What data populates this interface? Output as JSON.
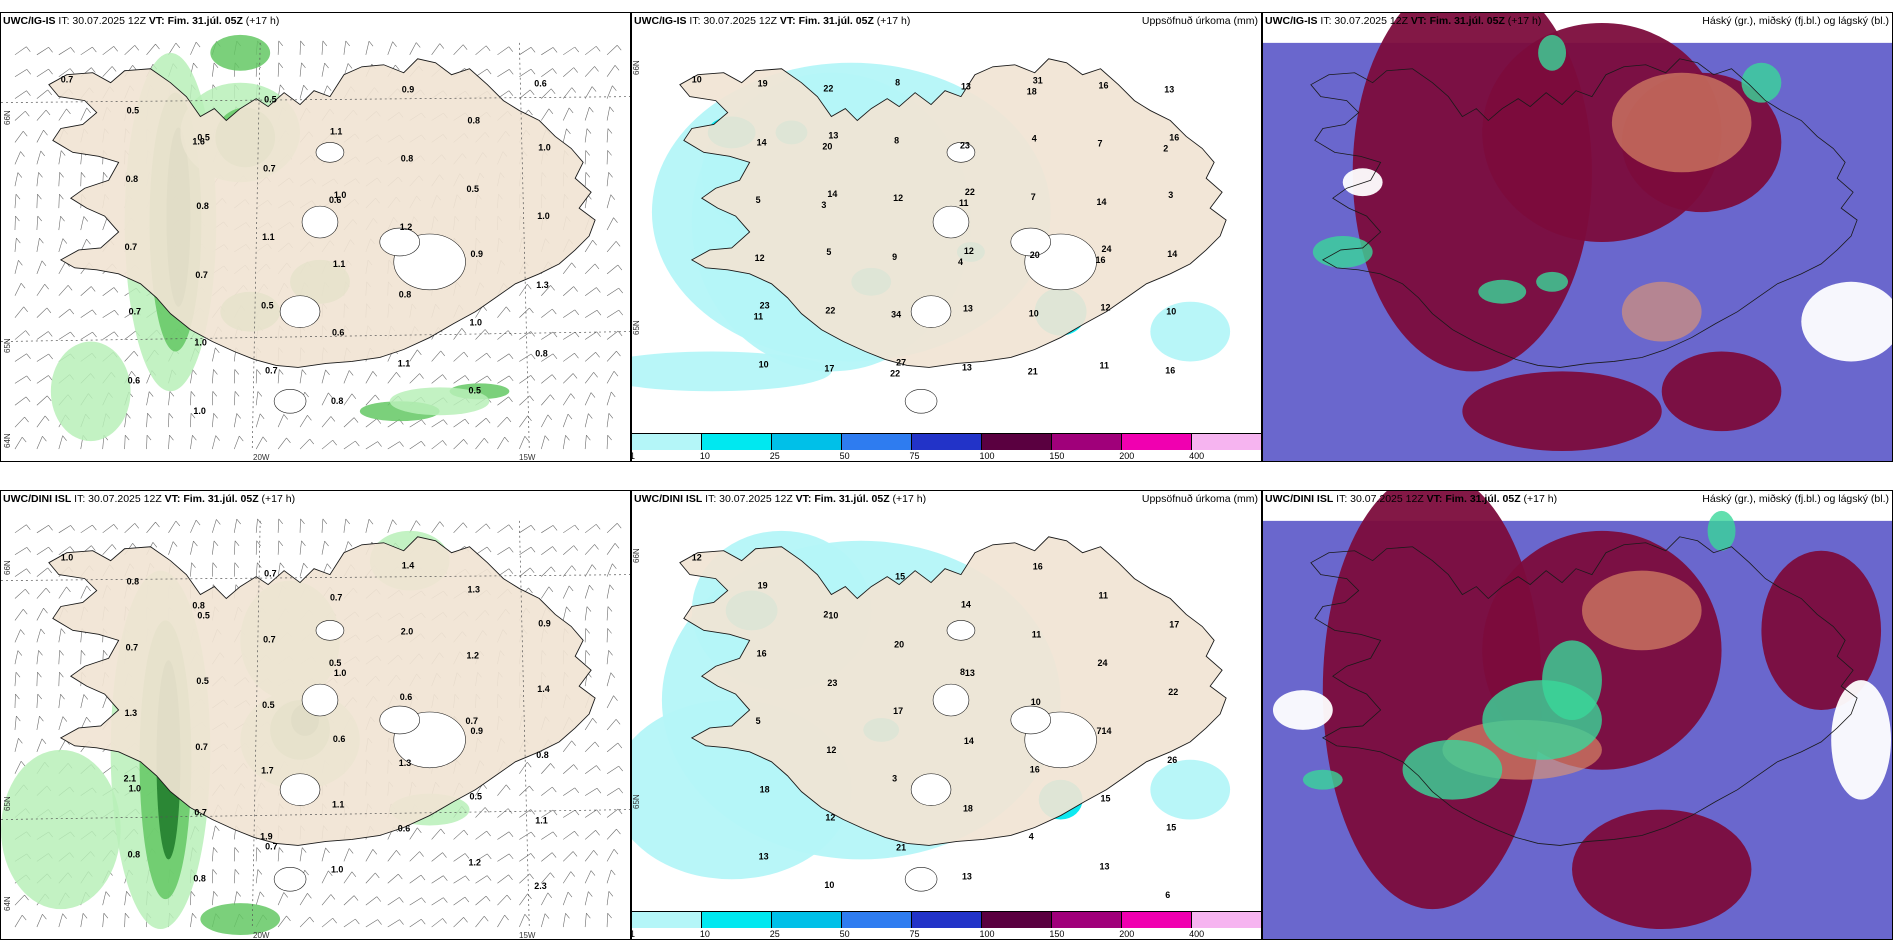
{
  "panels": {
    "p1": {
      "model": "UWC/IG-IS",
      "it_label": "IT: 30.07.2025 12Z",
      "vt_label": "VT: Fim. 31.júl. 05Z",
      "lead": "(+17 h)"
    },
    "p2": {
      "model": "UWC/IG-IS",
      "it_label": "IT: 30.07.2025 12Z",
      "vt_label": "VT: Fim. 31.júl. 05Z",
      "lead": "(+17 h)",
      "right_title": "Uppsöfnuð úrkoma (mm)"
    },
    "p3": {
      "model": "UWC/IG-IS",
      "it_label": "IT: 30.07.2025 12Z",
      "vt_label": "VT: Fim. 31.júl. 05Z",
      "lead": "(+17 h)",
      "right_title": "Háský (gr.), miðský (fj.bl.) og lágský (bl.)"
    },
    "p4": {
      "model": "UWC/DINI ISL",
      "it_label": "IT: 30.07.2025 12Z",
      "vt_label": "VT: Fim. 31.júl. 05Z",
      "lead": "(+17 h)"
    },
    "p5": {
      "model": "UWC/DINI ISL",
      "it_label": "IT: 30.07.2025 12Z",
      "vt_label": "VT: Fim. 31.júl. 05Z",
      "lead": "(+17 h)",
      "right_title": "Uppsöfnuð úrkoma (mm)"
    },
    "p6": {
      "model": "UWC/DINI ISL",
      "it_label": "IT: 30.07.2025 12Z",
      "vt_label": "VT: Fim. 31.júl. 05Z",
      "lead": "(+17 h)",
      "right_title": "Háský (gr.), miðský (fj.bl.) og lágský (bl.)"
    }
  },
  "axes": {
    "lat_66": "66N",
    "lat_65": "65N",
    "lat_64": "64N",
    "lon_20": "20W",
    "lon_15": "15W"
  },
  "legend": {
    "labels": [
      "1",
      "10",
      "25",
      "50",
      "75",
      "100",
      "150",
      "200",
      "400"
    ],
    "colors": [
      "#b4f6f8",
      "#00e8f0",
      "#00c0e8",
      "#2e7cf0",
      "#2233c8",
      "#5a0040",
      "#a0007a",
      "#f000b0",
      "#f6b4f0"
    ]
  },
  "map_colors": {
    "land": "#f1e4d4",
    "sea": "#ffffff",
    "coast": "#1a1a1a",
    "green_light": "#b9f0b9",
    "green_mid": "#64c864",
    "green_dark": "#1e7a2a",
    "precip_light": "#b4f6f8",
    "precip_mid": "#00e8f0",
    "cloud_high": "#7c0c3c",
    "cloud_mid": "#5a56c8",
    "cloud_low": "#3ad79a",
    "cloud_orange": "#e89a6a"
  },
  "top_left_values": [
    "0.7",
    "0.5",
    "1.0",
    "0.9",
    "0.7",
    "0.7",
    "0.9",
    "1.0",
    "0.8",
    "1.1",
    "1.0",
    "0.6",
    "0.5",
    "0.8",
    "1.0",
    "0.7",
    "0.6",
    "0.5",
    "0.5",
    "0.7",
    "1.2",
    "1.3",
    "1.0",
    "0.8",
    "0.8",
    "0.8",
    "1.1",
    "0.8",
    "0.8",
    "1.0",
    "1.1",
    "0.5",
    "0.7",
    "0.5",
    "1.1",
    "0.6",
    "1.6",
    "0.6"
  ],
  "bottom_left_values": [
    "1.0",
    "0.5",
    "1.0",
    "0.9",
    "1.0",
    "0.7",
    "1.4",
    "0.9",
    "0.5",
    "0.6",
    "0.5",
    "0.8",
    "0.7",
    "2.0",
    "1.4",
    "0.7",
    "1.1",
    "1.2",
    "0.8",
    "0.7",
    "0.6",
    "0.8",
    "0.7",
    "1.0",
    "1.3",
    "0.7",
    "0.5",
    "1.3",
    "1.1",
    "0.8",
    "0.7",
    "1.2",
    "1.3",
    "1.7",
    "0.6",
    "2.3",
    "0.8",
    "0.5",
    "0.7",
    "2.1",
    "1.9"
  ],
  "top_mid_values": [
    "10",
    "13",
    "22",
    "24",
    "23",
    "27",
    "31",
    "16",
    "14",
    "12",
    "12",
    "10",
    "8",
    "4",
    "3",
    "5",
    "13",
    "11",
    "19",
    "8",
    "7",
    "14",
    "22",
    "13",
    "16",
    "14",
    "12",
    "20",
    "10",
    "17",
    "13",
    "7",
    "5",
    "9",
    "10",
    "16",
    "22",
    "23",
    "14",
    "12",
    "34",
    "21",
    "13",
    "20",
    "11",
    "16",
    "11",
    "22",
    "18",
    "2",
    "3",
    "4"
  ],
  "bottom_mid_values": [
    "12",
    "10",
    "13",
    "14",
    "18",
    "21",
    "16",
    "17",
    "23",
    "14",
    "15",
    "13",
    "15",
    "11",
    "22",
    "12",
    "18",
    "13",
    "19",
    "20",
    "10",
    "26",
    "12",
    "13",
    "11",
    "16",
    "17",
    "16",
    "15",
    "10",
    "14",
    "24",
    "5",
    "3",
    "4",
    "6",
    "2",
    "8",
    "7"
  ]
}
